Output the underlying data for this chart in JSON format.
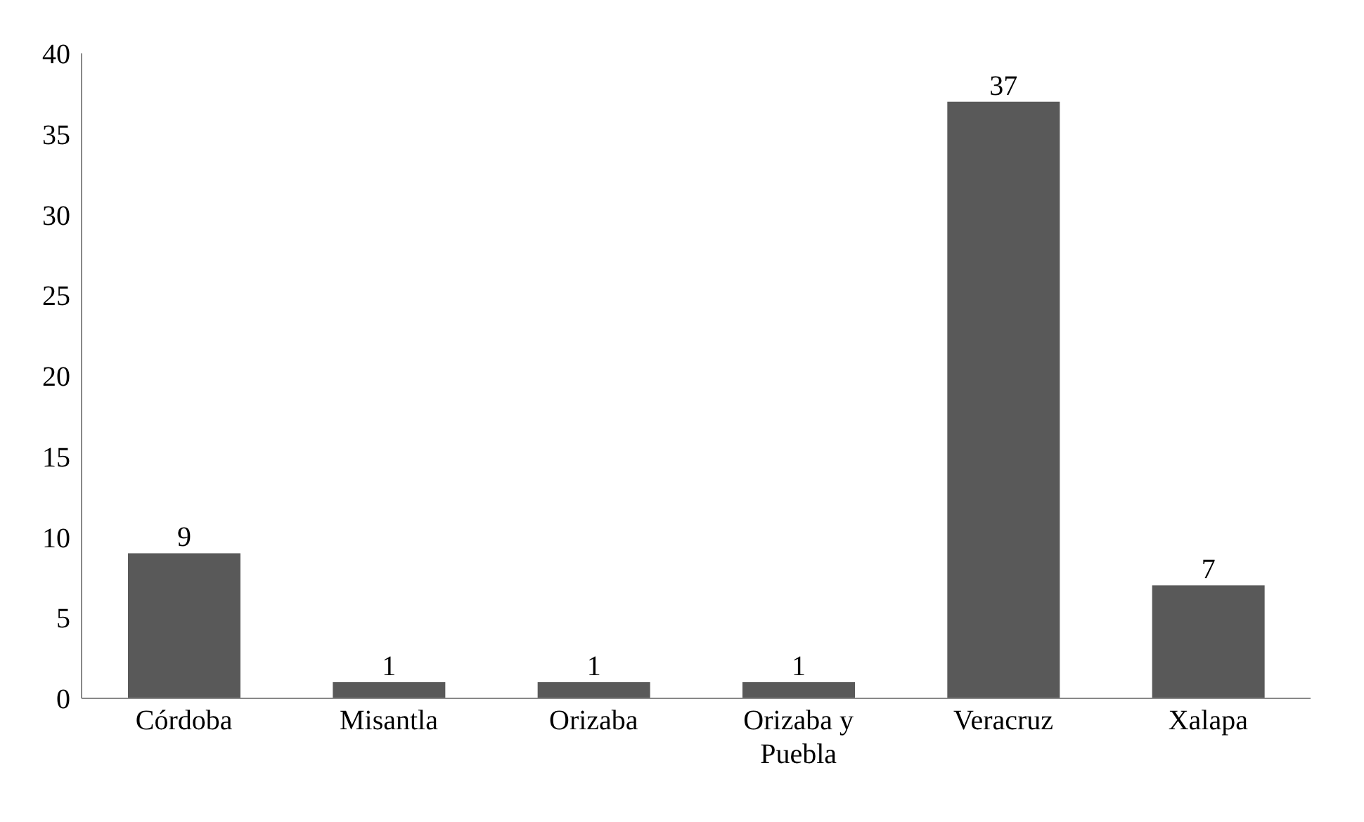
{
  "chart_data": {
    "type": "bar",
    "categories": [
      "Córdoba",
      "Misantla",
      "Orizaba",
      "Orizaba y Puebla",
      "Veracruz",
      "Xalapa"
    ],
    "values": [
      9,
      1,
      1,
      1,
      37,
      7
    ],
    "color": "#595959",
    "ylim": [
      0,
      40
    ],
    "yticks": [
      0,
      5,
      10,
      15,
      20,
      25,
      30,
      35,
      40
    ],
    "grid": false,
    "data_labels": true
  }
}
